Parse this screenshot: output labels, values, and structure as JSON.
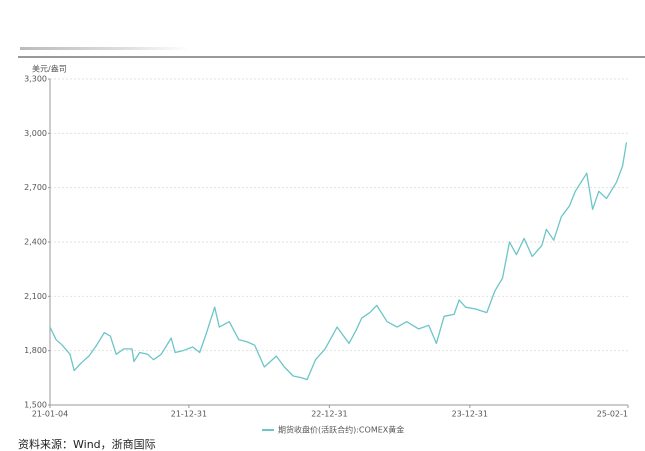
{
  "chart_data": {
    "type": "line",
    "y_axis_label": "美元/盎司",
    "legend": "期货收盘价(活跃合约):COMEX黄金",
    "source": "资料来源：Wind，浙商国际",
    "x": [
      "21-01-04",
      "21-01-20",
      "21-02-05",
      "21-02-25",
      "21-03-08",
      "21-03-25",
      "21-04-15",
      "21-05-05",
      "21-05-25",
      "21-06-10",
      "21-06-25",
      "21-07-15",
      "21-08-05",
      "21-08-10",
      "21-08-25",
      "21-09-15",
      "21-09-30",
      "21-10-20",
      "21-11-15",
      "21-11-25",
      "21-12-15",
      "22-01-10",
      "22-01-28",
      "22-02-15",
      "22-03-08",
      "22-03-20",
      "22-04-15",
      "22-05-10",
      "22-05-30",
      "22-06-20",
      "22-07-15",
      "22-08-15",
      "22-09-05",
      "22-09-28",
      "22-10-20",
      "22-11-03",
      "22-11-25",
      "22-12-20",
      "23-01-20",
      "23-02-20",
      "23-03-10",
      "23-03-25",
      "23-04-15",
      "23-05-03",
      "23-05-30",
      "23-06-25",
      "23-07-20",
      "23-08-20",
      "23-09-15",
      "23-10-05",
      "23-10-25",
      "23-11-20",
      "23-12-03",
      "23-12-20",
      "24-01-15",
      "24-02-13",
      "24-03-05",
      "24-03-25",
      "24-04-12",
      "24-04-30",
      "24-05-20",
      "24-06-10",
      "24-07-05",
      "24-07-17",
      "24-08-05",
      "24-08-25",
      "24-09-15",
      "24-09-30",
      "24-10-30",
      "24-11-14",
      "24-11-30",
      "24-12-20",
      "25-01-15",
      "25-01-31",
      "25-02-10"
    ],
    "series": [
      {
        "name": "期货收盘价(活跃合约):COMEX黄金",
        "color": "#6cc5c9",
        "values": [
          1930,
          1860,
          1830,
          1780,
          1690,
          1730,
          1770,
          1830,
          1900,
          1880,
          1780,
          1810,
          1810,
          1740,
          1790,
          1780,
          1750,
          1780,
          1870,
          1790,
          1800,
          1820,
          1790,
          1900,
          2040,
          1930,
          1960,
          1860,
          1850,
          1830,
          1710,
          1770,
          1710,
          1660,
          1650,
          1640,
          1750,
          1810,
          1930,
          1840,
          1910,
          1980,
          2010,
          2050,
          1960,
          1930,
          1960,
          1920,
          1940,
          1840,
          1990,
          2000,
          2080,
          2040,
          2030,
          2010,
          2130,
          2200,
          2400,
          2330,
          2420,
          2320,
          2380,
          2470,
          2410,
          2540,
          2600,
          2680,
          2780,
          2580,
          2680,
          2640,
          2730,
          2820,
          2950
        ]
      }
    ],
    "xlim": [
      "21-01-04",
      "25-02-14"
    ],
    "xticks": [
      "21-01-04",
      "21-12-31",
      "22-12-31",
      "23-12-31",
      {
        "value": "25-02-14",
        "label": "25-02-1"
      }
    ],
    "ylim": [
      1500,
      3300
    ],
    "yticks": [
      {
        "value": 1500,
        "label": "1,500"
      },
      {
        "value": 1800,
        "label": "1,800"
      },
      {
        "value": 2100,
        "label": "2,100"
      },
      {
        "value": 2400,
        "label": "2,400"
      },
      {
        "value": 2700,
        "label": "2,700"
      },
      {
        "value": 3000,
        "label": "3,000"
      },
      {
        "value": 3300,
        "label": "3,300"
      }
    ],
    "grid": true
  }
}
